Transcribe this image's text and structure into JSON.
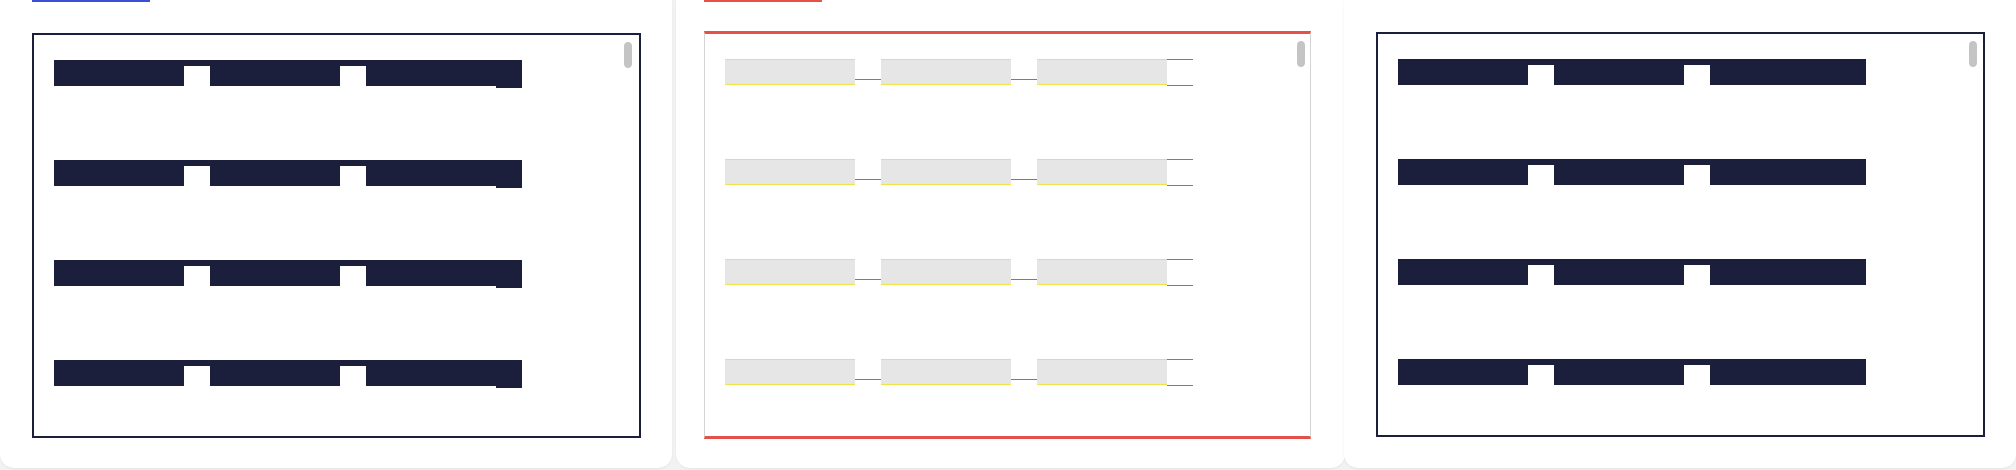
{
  "theme": {
    "navy": "#1c1f3c",
    "gray_fill": "#e6e6e6",
    "yellow_outline": "#f2e24a",
    "red_accent": "#e4504a",
    "blue_accent": "#3a4fd8",
    "frame_gray": "#d4d4d4",
    "scroll_gray": "#c4c4c4",
    "card_bg": "#ffffff",
    "page_bg": "#f2f2f2"
  },
  "panels": [
    {
      "name": "panel-navy-with-end-caps",
      "variant": "navy",
      "bar_count": 4,
      "end_cap": true
    },
    {
      "name": "panel-gray-outlined",
      "variant": "outlined",
      "bar_count": 4,
      "end_cap": true
    },
    {
      "name": "panel-navy",
      "variant": "navy",
      "bar_count": 4,
      "end_cap": false
    }
  ]
}
